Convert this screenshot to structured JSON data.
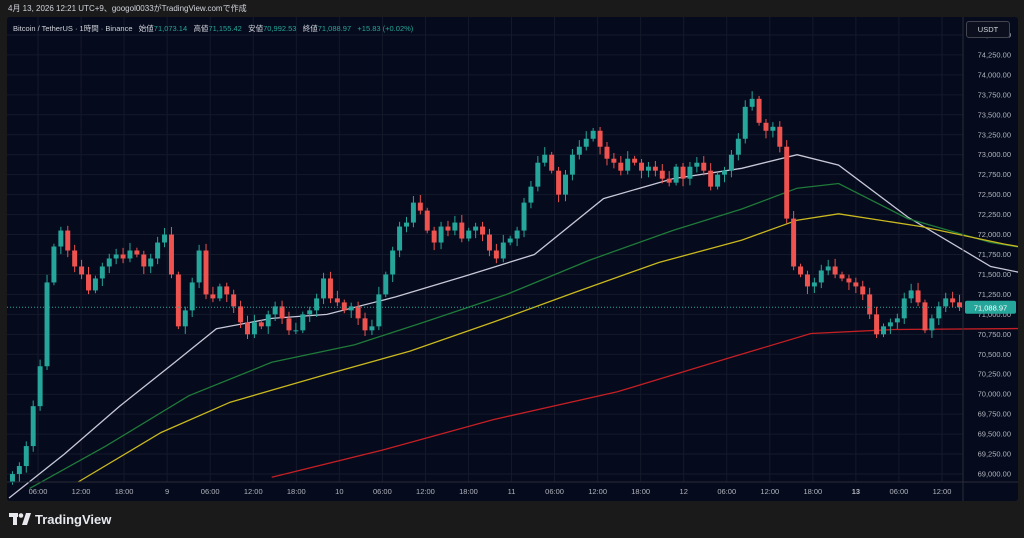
{
  "header": {
    "caption": "4月 13, 2026 12:21 UTC+9、googol0033がTradingView.comで作成"
  },
  "legend": {
    "symbol": "Bitcoin / TetherUS · 1時間 · Binance",
    "open_label": "始値",
    "open_value": "71,073.14",
    "high_label": "高値",
    "high_value": "71,155.42",
    "low_label": "安値",
    "low_value": "70,992.53",
    "close_label": "終値",
    "close_value": "71,088.97",
    "change": "+15.83 (+0.02%)"
  },
  "currency_button": "USDT",
  "footer": {
    "brand": "TradingView"
  },
  "colors": {
    "up": "#26a69a",
    "down": "#ef5350",
    "ma_short": "#c7c8d8",
    "ma_medium": "#1f7a3a",
    "ma_long": "#c9b820",
    "ma_longest": "#c41f24"
  },
  "chart_data": {
    "type": "candlestick",
    "timeframe": "1時間",
    "ylim": [
      68900,
      74650
    ],
    "y_ticks": [
      69000,
      69250,
      69500,
      69750,
      70000,
      70250,
      70500,
      70750,
      71000,
      71250,
      71500,
      71750,
      72000,
      72250,
      72500,
      72750,
      73000,
      73250,
      73500,
      73750,
      74000,
      74250,
      74500
    ],
    "y_tick_labels": [
      "69,000.00",
      "69,250.00",
      "69,500.00",
      "69,750.00",
      "70,000.00",
      "70,250.00",
      "70,500.00",
      "70,750.00",
      "71,000.00",
      "71,250.00",
      "71,500.00",
      "71,750.00",
      "72,000.00",
      "72,250.00",
      "72,500.00",
      "72,750.00",
      "73,000.00",
      "73,250.00",
      "73,500.00",
      "73,750.00",
      "74,000.00",
      "74,250.00",
      "74,500.00"
    ],
    "x_tick_labels": [
      "06:00",
      "12:00",
      "18:00",
      "9",
      "06:00",
      "12:00",
      "18:00",
      "10",
      "06:00",
      "12:00",
      "18:00",
      "11",
      "06:00",
      "12:00",
      "18:00",
      "12",
      "06:00",
      "12:00",
      "18:00",
      "13",
      "06:00",
      "12:00"
    ],
    "x_tick_bold": [
      false,
      false,
      false,
      false,
      false,
      false,
      false,
      false,
      false,
      false,
      false,
      false,
      false,
      false,
      false,
      false,
      false,
      false,
      false,
      true,
      false,
      false
    ],
    "last_price": 71088.97,
    "last_price_label": "71,088.97",
    "closes": [
      69000,
      69100,
      69350,
      69850,
      70350,
      71400,
      71850,
      72050,
      71800,
      71600,
      71500,
      71300,
      71450,
      71600,
      71700,
      71750,
      71700,
      71800,
      71750,
      71600,
      71700,
      71900,
      72000,
      71500,
      70850,
      71050,
      71400,
      71800,
      71250,
      71200,
      71350,
      71250,
      71100,
      70900,
      70750,
      70900,
      70850,
      71000,
      71100,
      70950,
      70800,
      70800,
      71000,
      71050,
      71200,
      71450,
      71200,
      71150,
      71050,
      71100,
      70950,
      70800,
      70850,
      71250,
      71500,
      71800,
      72100,
      72150,
      72400,
      72300,
      72050,
      71900,
      72100,
      72050,
      72150,
      71950,
      72050,
      72100,
      72000,
      71800,
      71700,
      71900,
      71950,
      72050,
      72400,
      72600,
      72900,
      73000,
      72800,
      72500,
      72750,
      73000,
      73100,
      73200,
      73300,
      73100,
      72950,
      72900,
      72800,
      72950,
      72900,
      72800,
      72850,
      72800,
      72700,
      72650,
      72850,
      72700,
      72850,
      72900,
      72800,
      72600,
      72750,
      72800,
      73000,
      73200,
      73600,
      73700,
      73400,
      73300,
      73350,
      73100,
      72200,
      71600,
      71500,
      71350,
      71400,
      71550,
      71600,
      71500,
      71450,
      71400,
      71350,
      71250,
      71000,
      70750,
      70850,
      70900,
      70950,
      71200,
      71300,
      71150,
      70800,
      70950,
      71100,
      71200,
      71150,
      71089
    ],
    "series": [
      {
        "name": "",
        "color_key": "ma_short",
        "values": [
          [
            0,
            68700
          ],
          [
            8,
            69250
          ],
          [
            16,
            69850
          ],
          [
            24,
            70400
          ],
          [
            30,
            70820
          ],
          [
            38,
            70950
          ],
          [
            46,
            71000
          ],
          [
            56,
            71220
          ],
          [
            66,
            71480
          ],
          [
            76,
            71750
          ],
          [
            86,
            72450
          ],
          [
            96,
            72700
          ],
          [
            106,
            72830
          ],
          [
            114,
            73000
          ],
          [
            120,
            72870
          ],
          [
            130,
            72220
          ],
          [
            142,
            71600
          ],
          [
            155,
            71370
          ]
        ]
      },
      {
        "name": "",
        "color_key": "ma_medium",
        "values": [
          [
            3,
            68820
          ],
          [
            14,
            69350
          ],
          [
            26,
            69980
          ],
          [
            38,
            70400
          ],
          [
            50,
            70620
          ],
          [
            60,
            70900
          ],
          [
            72,
            71250
          ],
          [
            84,
            71680
          ],
          [
            96,
            72050
          ],
          [
            106,
            72320
          ],
          [
            114,
            72580
          ],
          [
            120,
            72640
          ],
          [
            130,
            72200
          ],
          [
            142,
            71900
          ],
          [
            155,
            71720
          ]
        ]
      },
      {
        "name": "",
        "color_key": "ma_long",
        "values": [
          [
            10,
            68900
          ],
          [
            22,
            69520
          ],
          [
            32,
            69900
          ],
          [
            46,
            70250
          ],
          [
            58,
            70540
          ],
          [
            70,
            70900
          ],
          [
            82,
            71280
          ],
          [
            94,
            71650
          ],
          [
            106,
            71930
          ],
          [
            114,
            72180
          ],
          [
            120,
            72260
          ],
          [
            132,
            72100
          ],
          [
            144,
            71880
          ],
          [
            155,
            71710
          ]
        ]
      },
      {
        "name": "",
        "color_key": "ma_longest",
        "values": [
          [
            38,
            68960
          ],
          [
            54,
            69300
          ],
          [
            70,
            69680
          ],
          [
            88,
            70030
          ],
          [
            104,
            70450
          ],
          [
            116,
            70760
          ],
          [
            128,
            70810
          ],
          [
            144,
            70820
          ],
          [
            155,
            70830
          ]
        ]
      }
    ]
  }
}
